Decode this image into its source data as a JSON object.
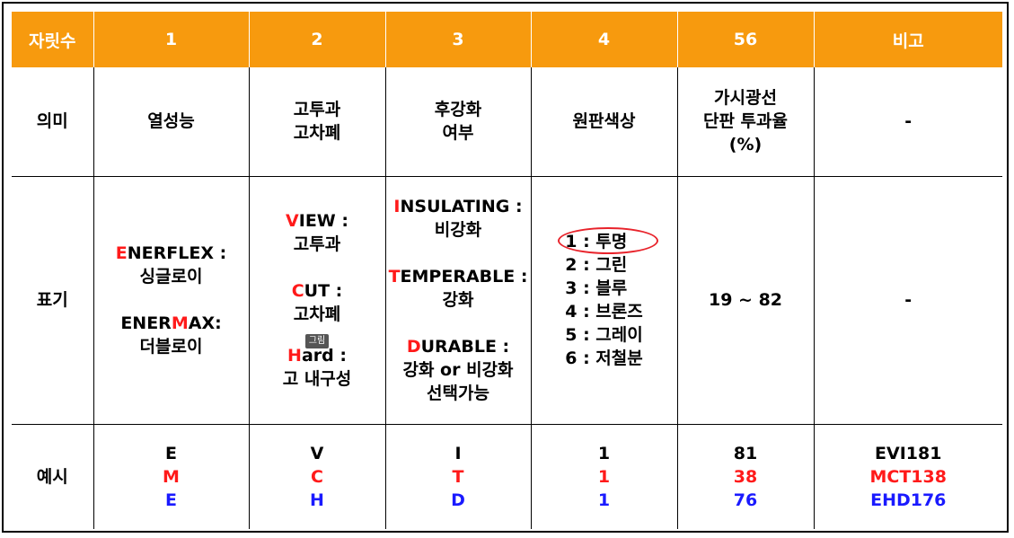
{
  "header": [
    "자릿수",
    "1",
    "2",
    "3",
    "4",
    "56",
    "비고"
  ],
  "meaning": {
    "label": "의미",
    "c1": "열성능",
    "c2": [
      "고투과",
      "고차폐"
    ],
    "c3": [
      "후강화",
      "여부"
    ],
    "c4": "원판색상",
    "c5": [
      "가시광선",
      "단판 투과율",
      "(%)"
    ],
    "c6": "-"
  },
  "notation": {
    "label": "표기",
    "c1": {
      "a_letter": "E",
      "a_rest": "NERFLEX :",
      "a_desc": "싱글로이",
      "b_pre": "ENER",
      "b_letter": "M",
      "b_rest": "AX:",
      "b_desc": "더블로이"
    },
    "c2": {
      "a_letter": "V",
      "a_rest": "IEW :",
      "a_desc": "고투과",
      "b_letter": "C",
      "b_rest": "UT :",
      "b_desc": "고차폐",
      "tooltip": "그림",
      "c_letter": "H",
      "c_rest": "ard :",
      "c_desc": "고 내구성"
    },
    "c3": {
      "a_letter": "I",
      "a_rest": "NSULATING :",
      "a_desc": "비강화",
      "b_letter": "T",
      "b_rest": "EMPERABLE :",
      "b_desc": "강화",
      "c_letter": "D",
      "c_rest": "URABLE :",
      "c_desc1": "강화 or 비강화",
      "c_desc2": "선택가능"
    },
    "c4": [
      "1 : 투명",
      "2 : 그린",
      "3 : 블루",
      "4 : 브론즈",
      "5 : 그레이",
      "6 : 저철분"
    ],
    "c5": "19 ~ 82",
    "c6": "-"
  },
  "example": {
    "label": "예시",
    "c1": [
      "E",
      "M",
      "E"
    ],
    "c2": [
      "V",
      "C",
      "H"
    ],
    "c3": [
      "I",
      "T",
      "D"
    ],
    "c4": [
      "1",
      "1",
      "1"
    ],
    "c5": [
      "81",
      "38",
      "76"
    ],
    "c6": [
      "EVI181",
      "MCT138",
      "EHD176"
    ]
  },
  "colors": {
    "header_bg": "#f79a0e",
    "accent_red": "#ff1a1a",
    "accent_blue": "#1a1aff",
    "circle": "#e8232b"
  }
}
